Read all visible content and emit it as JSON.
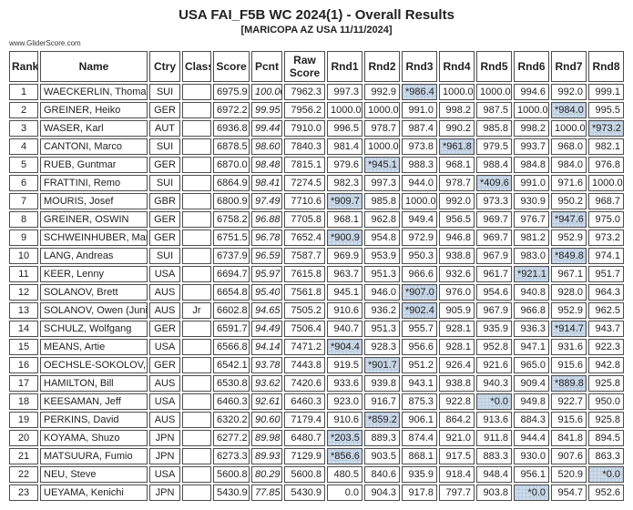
{
  "header": {
    "title": "USA FAI_F5B WC 2024(1) - Overall Results",
    "subtitle": "[MARICOPA AZ USA 11/11/2024]",
    "watermark": "www.GliderScore.com"
  },
  "colors": {
    "dropped_round_highlight": "#cddcea",
    "cell_border": "#4d4d4d"
  },
  "table": {
    "columns": [
      "Rank",
      "Name",
      "Ctry",
      "Class",
      "Score",
      "Pcnt",
      "Raw Score",
      "Rnd1",
      "Rnd2",
      "Rnd3",
      "Rnd4",
      "Rnd5",
      "Rnd6",
      "Rnd7",
      "Rnd8"
    ],
    "rows": [
      {
        "rank": "1",
        "name": "WAECKERLIN, Thomas",
        "ctry": "SUI",
        "class": "",
        "score": "6975.9",
        "pcnt": "100.00",
        "raw": "7962.3",
        "rounds": [
          "997.3",
          "992.9",
          "*986.4",
          "1000.0",
          "1000.0",
          "994.6",
          "992.0",
          "999.1"
        ]
      },
      {
        "rank": "2",
        "name": "GREINER, Heiko",
        "ctry": "GER",
        "class": "",
        "score": "6972.2",
        "pcnt": "99.95",
        "raw": "7956.2",
        "rounds": [
          "1000.0",
          "1000.0",
          "991.0",
          "998.2",
          "987.5",
          "1000.0",
          "*984.0",
          "995.5"
        ]
      },
      {
        "rank": "3",
        "name": "WASER, Karl",
        "ctry": "AUT",
        "class": "",
        "score": "6936.8",
        "pcnt": "99.44",
        "raw": "7910.0",
        "rounds": [
          "996.5",
          "978.7",
          "987.4",
          "990.2",
          "985.8",
          "998.2",
          "1000.0",
          "*973.2"
        ]
      },
      {
        "rank": "4",
        "name": "CANTONI, Marco",
        "ctry": "SUI",
        "class": "",
        "score": "6878.5",
        "pcnt": "98.60",
        "raw": "7840.3",
        "rounds": [
          "981.4",
          "1000.0",
          "973.8",
          "*961.8",
          "979.5",
          "993.7",
          "968.0",
          "982.1"
        ]
      },
      {
        "rank": "5",
        "name": "RUEB, Guntmar",
        "ctry": "GER",
        "class": "",
        "score": "6870.0",
        "pcnt": "98.48",
        "raw": "7815.1",
        "rounds": [
          "979.6",
          "*945.1",
          "988.3",
          "968.1",
          "988.4",
          "984.8",
          "984.0",
          "976.8"
        ]
      },
      {
        "rank": "6",
        "name": "FRATTINI, Remo",
        "ctry": "SUI",
        "class": "",
        "score": "6864.9",
        "pcnt": "98.41",
        "raw": "7274.5",
        "rounds": [
          "982.3",
          "997.3",
          "944.0",
          "978.7",
          "*409.6",
          "991.0",
          "971.6",
          "1000.0"
        ]
      },
      {
        "rank": "7",
        "name": "MOURIS, Josef",
        "ctry": "GBR",
        "class": "",
        "score": "6800.9",
        "pcnt": "97.49",
        "raw": "7710.6",
        "rounds": [
          "*909.7",
          "985.8",
          "1000.0",
          "992.0",
          "973.3",
          "930.9",
          "950.2",
          "968.7"
        ]
      },
      {
        "rank": "8",
        "name": "GREINER, OSWIN",
        "ctry": "GER",
        "class": "",
        "score": "6758.2",
        "pcnt": "96.88",
        "raw": "7705.8",
        "rounds": [
          "968.1",
          "962.8",
          "949.4",
          "956.5",
          "969.7",
          "976.7",
          "*947.6",
          "975.0"
        ]
      },
      {
        "rank": "9",
        "name": "SCHWEINHUBER, Mark",
        "ctry": "GER",
        "class": "",
        "score": "6751.5",
        "pcnt": "96.78",
        "raw": "7652.4",
        "rounds": [
          "*900.9",
          "954.8",
          "972.9",
          "946.8",
          "969.7",
          "981.2",
          "952.9",
          "973.2"
        ]
      },
      {
        "rank": "10",
        "name": "LANG, Andreas",
        "ctry": "SUI",
        "class": "",
        "score": "6737.9",
        "pcnt": "96.59",
        "raw": "7587.7",
        "rounds": [
          "969.9",
          "953.9",
          "950.3",
          "938.8",
          "967.9",
          "983.0",
          "*849.8",
          "974.1"
        ]
      },
      {
        "rank": "11",
        "name": "KEER, Lenny",
        "ctry": "USA",
        "class": "",
        "score": "6694.7",
        "pcnt": "95.97",
        "raw": "7615.8",
        "rounds": [
          "963.7",
          "951.3",
          "966.6",
          "932.6",
          "961.7",
          "*921.1",
          "967.1",
          "951.7"
        ]
      },
      {
        "rank": "12",
        "name": "SOLANOV, Brett",
        "ctry": "AUS",
        "class": "",
        "score": "6654.8",
        "pcnt": "95.40",
        "raw": "7561.8",
        "rounds": [
          "945.1",
          "946.0",
          "*907.0",
          "976.0",
          "954.6",
          "940.8",
          "928.0",
          "964.3"
        ]
      },
      {
        "rank": "13",
        "name": "SOLANOV, Owen (Junior",
        "ctry": "AUS",
        "class": "Jr",
        "score": "6602.8",
        "pcnt": "94.65",
        "raw": "7505.2",
        "rounds": [
          "910.6",
          "936.2",
          "*902.4",
          "905.9",
          "967.9",
          "966.8",
          "952.9",
          "962.5"
        ]
      },
      {
        "rank": "14",
        "name": "SCHULZ, Wolfgang",
        "ctry": "GER",
        "class": "",
        "score": "6591.7",
        "pcnt": "94.49",
        "raw": "7506.4",
        "rounds": [
          "940.7",
          "951.3",
          "955.7",
          "928.1",
          "935.9",
          "936.3",
          "*914.7",
          "943.7"
        ]
      },
      {
        "rank": "15",
        "name": "MEANS, Artie",
        "ctry": "USA",
        "class": "",
        "score": "6566.8",
        "pcnt": "94.14",
        "raw": "7471.2",
        "rounds": [
          "*904.4",
          "928.3",
          "956.6",
          "928.1",
          "952.8",
          "947.1",
          "931.6",
          "922.3"
        ]
      },
      {
        "rank": "16",
        "name": "OECHSLE-SOKOLOV, Ily",
        "ctry": "GER",
        "class": "",
        "score": "6542.1",
        "pcnt": "93.78",
        "raw": "7443.8",
        "rounds": [
          "919.5",
          "*901.7",
          "951.2",
          "926.4",
          "921.6",
          "965.0",
          "915.6",
          "942.8"
        ]
      },
      {
        "rank": "17",
        "name": "HAMILTON, Bill",
        "ctry": "AUS",
        "class": "",
        "score": "6530.8",
        "pcnt": "93.62",
        "raw": "7420.6",
        "rounds": [
          "933.6",
          "939.8",
          "943.1",
          "938.8",
          "940.3",
          "909.4",
          "*889.8",
          "925.8"
        ]
      },
      {
        "rank": "18",
        "name": "KEESAMAN, Jeff",
        "ctry": "USA",
        "class": "",
        "score": "6460.3",
        "pcnt": "92.61",
        "raw": "6460.3",
        "rounds": [
          "923.0",
          "916.7",
          "875.3",
          "922.8",
          "*0.0",
          "949.8",
          "922.7",
          "950.0"
        ]
      },
      {
        "rank": "19",
        "name": "PERKINS, David",
        "ctry": "AUS",
        "class": "",
        "score": "6320.2",
        "pcnt": "90.60",
        "raw": "7179.4",
        "rounds": [
          "910.6",
          "*859.2",
          "906.1",
          "864.2",
          "913.6",
          "884.3",
          "915.6",
          "925.8"
        ]
      },
      {
        "rank": "20",
        "name": "KOYAMA, Shuzo",
        "ctry": "JPN",
        "class": "",
        "score": "6277.2",
        "pcnt": "89.98",
        "raw": "6480.7",
        "rounds": [
          "*203.5",
          "889.3",
          "874.4",
          "921.0",
          "911.8",
          "944.4",
          "841.8",
          "894.5"
        ]
      },
      {
        "rank": "21",
        "name": "MATSUURA, Fumio",
        "ctry": "JPN",
        "class": "",
        "score": "6273.3",
        "pcnt": "89.93",
        "raw": "7129.9",
        "rounds": [
          "*856.6",
          "903.5",
          "868.1",
          "917.5",
          "883.3",
          "930.0",
          "907.6",
          "863.3"
        ]
      },
      {
        "rank": "22",
        "name": "NEU, Steve",
        "ctry": "USA",
        "class": "",
        "score": "5600.8",
        "pcnt": "80.29",
        "raw": "5600.8",
        "rounds": [
          "480.5",
          "840.6",
          "935.9",
          "918.4",
          "948.4",
          "956.1",
          "520.9",
          "*0.0"
        ]
      },
      {
        "rank": "23",
        "name": "UEYAMA, Kenichi",
        "ctry": "JPN",
        "class": "",
        "score": "5430.9",
        "pcnt": "77.85",
        "raw": "5430.9",
        "rounds": [
          "0.0",
          "904.3",
          "917.8",
          "797.7",
          "903.8",
          "*0.0",
          "954.7",
          "952.6"
        ]
      }
    ]
  }
}
